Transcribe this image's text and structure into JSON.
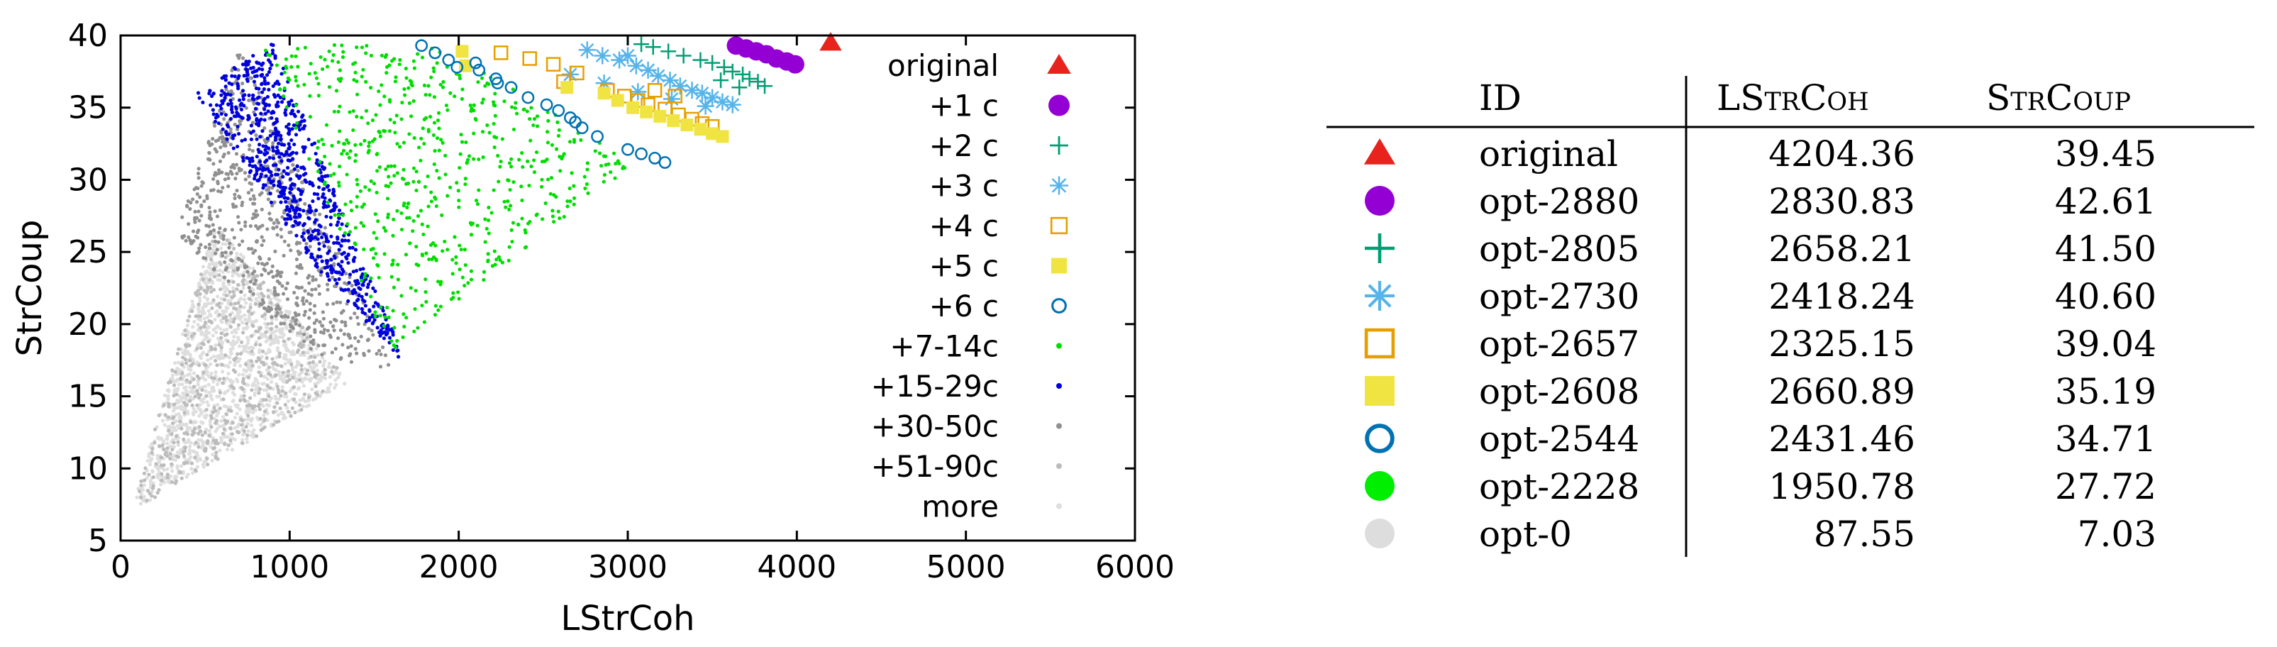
{
  "chart_data": {
    "type": "scatter",
    "xlabel": "LStrCoh",
    "ylabel": "StrCoup",
    "xlim": [
      0,
      6000
    ],
    "ylim": [
      5,
      40
    ],
    "xticks": [
      0,
      1000,
      2000,
      3000,
      4000,
      5000,
      6000
    ],
    "yticks": [
      5,
      10,
      15,
      20,
      25,
      30,
      35,
      40
    ],
    "xtick_labels": [
      "0",
      "1000",
      "2000",
      "3000",
      "4000",
      "5000",
      "6000"
    ],
    "ytick_labels": [
      "5",
      "10",
      "15",
      "20",
      "25",
      "30",
      "35",
      "40"
    ],
    "grid": false,
    "legend_position": "right",
    "series": [
      {
        "name": "original",
        "marker": "triangle",
        "color": "#e8231e",
        "points": [
          [
            4200,
            39.5
          ]
        ]
      },
      {
        "name": "+1 c",
        "marker": "circle-filled",
        "color": "#9400d3",
        "points": [
          [
            3640,
            39.3
          ],
          [
            3700,
            39.1
          ],
          [
            3760,
            38.9
          ],
          [
            3820,
            38.7
          ],
          [
            3880,
            38.4
          ],
          [
            3940,
            38.2
          ],
          [
            3990,
            38.0
          ]
        ]
      },
      {
        "name": "+2 c",
        "marker": "plus",
        "color": "#009e73",
        "points": [
          [
            3080,
            39.4
          ],
          [
            3150,
            39.2
          ],
          [
            3240,
            38.9
          ],
          [
            3330,
            38.6
          ],
          [
            3430,
            38.3
          ],
          [
            3500,
            38.1
          ],
          [
            3570,
            37.8
          ],
          [
            3620,
            37.5
          ],
          [
            3680,
            37.3
          ],
          [
            3720,
            37.0
          ],
          [
            3770,
            36.8
          ],
          [
            3810,
            36.5
          ],
          [
            3550,
            36.9
          ],
          [
            3660,
            36.4
          ]
        ]
      },
      {
        "name": "+3 c",
        "marker": "asterisk",
        "color": "#56b4e9",
        "points": [
          [
            2760,
            39.0
          ],
          [
            2850,
            38.6
          ],
          [
            2950,
            38.3
          ],
          [
            3050,
            37.9
          ],
          [
            3120,
            37.6
          ],
          [
            3180,
            37.2
          ],
          [
            3250,
            36.9
          ],
          [
            3310,
            36.5
          ],
          [
            3380,
            36.2
          ],
          [
            3440,
            36.0
          ],
          [
            3500,
            35.7
          ],
          [
            3560,
            35.4
          ],
          [
            3620,
            35.2
          ],
          [
            2660,
            37.3
          ],
          [
            2860,
            36.7
          ],
          [
            3060,
            36.1
          ],
          [
            3260,
            35.6
          ],
          [
            3460,
            35.1
          ],
          [
            3000,
            38.6
          ]
        ]
      },
      {
        "name": "+4 c",
        "marker": "square-open",
        "color": "#e69f00",
        "points": [
          [
            2250,
            38.8
          ],
          [
            2420,
            38.4
          ],
          [
            2560,
            38.0
          ],
          [
            2700,
            37.4
          ],
          [
            2620,
            36.8
          ],
          [
            2880,
            36.2
          ],
          [
            2980,
            35.8
          ],
          [
            3060,
            35.5
          ],
          [
            3120,
            35.2
          ],
          [
            3220,
            34.9
          ],
          [
            3300,
            34.5
          ],
          [
            3380,
            34.2
          ],
          [
            3440,
            33.9
          ],
          [
            3500,
            33.7
          ],
          [
            3280,
            35.8
          ],
          [
            3160,
            36.2
          ]
        ]
      },
      {
        "name": "+5 c",
        "marker": "square-filled",
        "color": "#f0e442",
        "points": [
          [
            2020,
            38.9
          ],
          [
            2040,
            37.9
          ],
          [
            2860,
            36.0
          ],
          [
            2940,
            35.5
          ],
          [
            3030,
            35.0
          ],
          [
            3110,
            34.7
          ],
          [
            3190,
            34.4
          ],
          [
            3270,
            34.1
          ],
          [
            3350,
            33.8
          ],
          [
            3430,
            33.5
          ],
          [
            3500,
            33.2
          ],
          [
            3560,
            33.0
          ],
          [
            2640,
            36.4
          ]
        ]
      },
      {
        "name": "+6 c",
        "marker": "circle-open",
        "color": "#0072b2",
        "points": [
          [
            1780,
            39.3
          ],
          [
            1860,
            38.8
          ],
          [
            1940,
            38.3
          ],
          [
            1990,
            37.8
          ],
          [
            2120,
            37.6
          ],
          [
            2220,
            37.0
          ],
          [
            2310,
            36.4
          ],
          [
            2410,
            35.7
          ],
          [
            2520,
            35.2
          ],
          [
            2590,
            34.8
          ],
          [
            2660,
            34.3
          ],
          [
            2730,
            33.6
          ],
          [
            2820,
            33.0
          ],
          [
            3000,
            32.1
          ],
          [
            3080,
            31.8
          ],
          [
            3160,
            31.5
          ],
          [
            3220,
            31.2
          ],
          [
            2100,
            38.1
          ],
          [
            2230,
            36.7
          ],
          [
            2690,
            34.0
          ]
        ]
      },
      {
        "name": "+7-14c",
        "marker": "dot",
        "color": "#00dd00",
        "points": []
      },
      {
        "name": "+15-29c",
        "marker": "dot",
        "color": "#0000dd",
        "points": []
      },
      {
        "name": "+30-50c",
        "marker": "dot",
        "color": "#909090",
        "points": []
      },
      {
        "name": "+51-90c",
        "marker": "dot",
        "color": "#bcbcbc",
        "points": []
      },
      {
        "name": "more",
        "marker": "dot",
        "color": "#dedede",
        "points": []
      }
    ]
  },
  "table": {
    "headers": [
      "ID",
      "LStrCoh",
      "StrCoup"
    ],
    "rows": [
      {
        "marker": "triangle",
        "color": "#e8231e",
        "id": "original",
        "lstrcoh": "4204.36",
        "strcoup": "39.45"
      },
      {
        "marker": "circle-filled",
        "color": "#9400d3",
        "id": "opt-2880",
        "lstrcoh": "2830.83",
        "strcoup": "42.61"
      },
      {
        "marker": "plus",
        "color": "#009e73",
        "id": "opt-2805",
        "lstrcoh": "2658.21",
        "strcoup": "41.50"
      },
      {
        "marker": "asterisk",
        "color": "#56b4e9",
        "id": "opt-2730",
        "lstrcoh": "2418.24",
        "strcoup": "40.60"
      },
      {
        "marker": "square-open",
        "color": "#e69f00",
        "id": "opt-2657",
        "lstrcoh": "2325.15",
        "strcoup": "39.04"
      },
      {
        "marker": "square-filled",
        "color": "#f0e442",
        "id": "opt-2608",
        "lstrcoh": "2660.89",
        "strcoup": "35.19"
      },
      {
        "marker": "circle-open",
        "color": "#0072b2",
        "id": "opt-2544",
        "lstrcoh": "2431.46",
        "strcoup": "34.71"
      },
      {
        "marker": "circle-filled",
        "color": "#00ee00",
        "id": "opt-2228",
        "lstrcoh": "1950.78",
        "strcoup": "27.72"
      },
      {
        "marker": "circle-filled",
        "color": "#dddddd",
        "id": "opt-0",
        "lstrcoh": "87.55",
        "strcoup": "7.03"
      }
    ]
  }
}
